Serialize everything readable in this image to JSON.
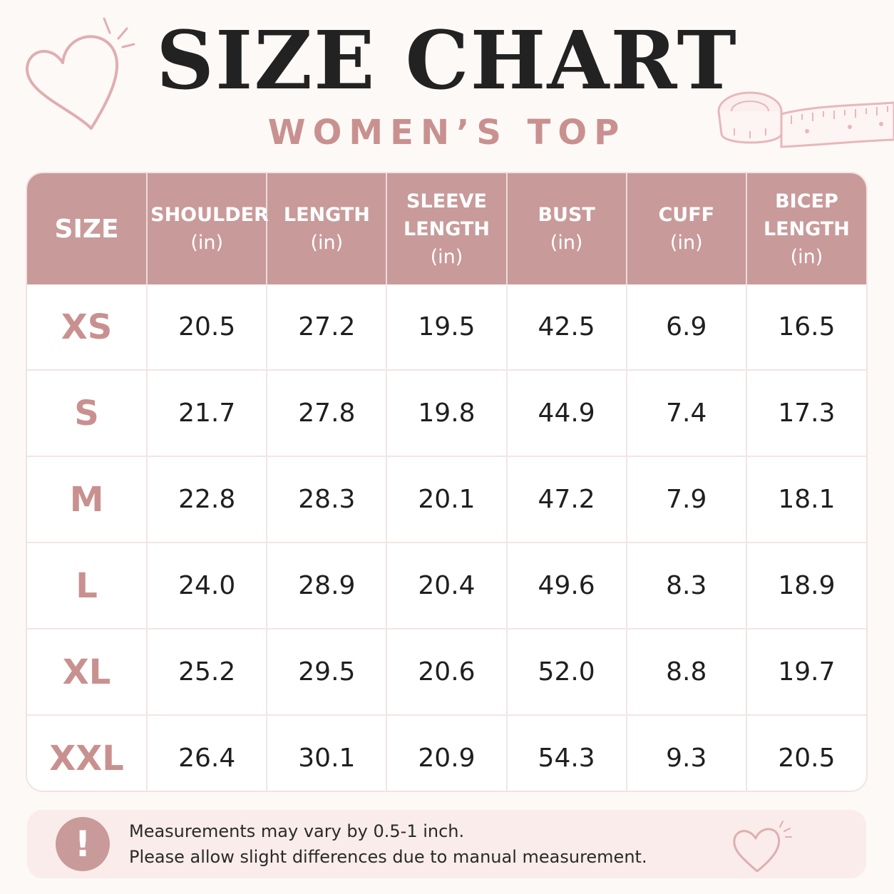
{
  "header": {
    "title": "SIZE CHART",
    "subtitle": "WOMEN’S TOP"
  },
  "colors": {
    "accent": "#c99a9a",
    "size_text": "#c8918f",
    "title": "#232222",
    "background": "#fdf9f7"
  },
  "table": {
    "columns": [
      {
        "lines": [
          "SIZE"
        ],
        "unit": ""
      },
      {
        "lines": [
          "SHOULDER"
        ],
        "unit": "(in)"
      },
      {
        "lines": [
          "LENGTH"
        ],
        "unit": "(in)"
      },
      {
        "lines": [
          "SLEEVE",
          "LENGTH"
        ],
        "unit": "(in)"
      },
      {
        "lines": [
          "BUST"
        ],
        "unit": "(in)"
      },
      {
        "lines": [
          "CUFF"
        ],
        "unit": "(in)"
      },
      {
        "lines": [
          "BICEP",
          "LENGTH"
        ],
        "unit": "(in)"
      }
    ],
    "rows": [
      [
        "XS",
        "20.5",
        "27.2",
        "19.5",
        "42.5",
        "6.9",
        "16.5"
      ],
      [
        "S",
        "21.7",
        "27.8",
        "19.8",
        "44.9",
        "7.4",
        "17.3"
      ],
      [
        "M",
        "22.8",
        "28.3",
        "20.1",
        "47.2",
        "7.9",
        "18.1"
      ],
      [
        "L",
        "24.0",
        "28.9",
        "20.4",
        "49.6",
        "8.3",
        "18.9"
      ],
      [
        "XL",
        "25.2",
        "29.5",
        "20.6",
        "52.0",
        "8.8",
        "19.7"
      ],
      [
        "XXL",
        "26.4",
        "30.1",
        "20.9",
        "54.3",
        "9.3",
        "20.5"
      ]
    ]
  },
  "note": {
    "icon": "exclamation-icon",
    "icon_glyph": "!",
    "line1": "Measurements may vary by 0.5-1 inch.",
    "line2": "Please allow slight differences due to manual measurement."
  },
  "decorations": {
    "top_left": "heart-outline-icon",
    "top_right": "measuring-tape-icon",
    "bottom_right": "heart-outline-icon"
  }
}
